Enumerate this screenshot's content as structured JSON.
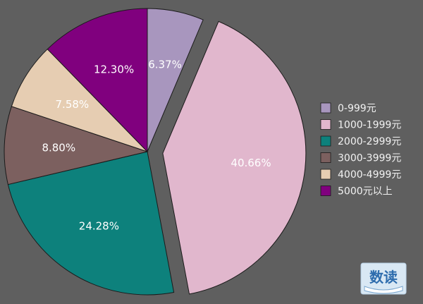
{
  "chart_data": {
    "type": "pie",
    "categories": [
      "0-999元",
      "1000-1999元",
      "2000-2999元",
      "3000-3999元",
      "4000-4999元",
      "5000元以上"
    ],
    "values": [
      6.37,
      40.66,
      24.28,
      8.8,
      7.58,
      12.3
    ],
    "data_labels": [
      "6.37%",
      "40.66%",
      "24.28%",
      "8.80%",
      "7.58%",
      "12.30%"
    ],
    "colors": [
      "#a896be",
      "#e1b7cd",
      "#0d817c",
      "#7c605f",
      "#e6cdb2",
      "#80007e"
    ],
    "exploded": [
      false,
      true,
      false,
      false,
      false,
      false
    ],
    "legend_position": "right",
    "title": ""
  },
  "logo": {
    "text": "数读"
  }
}
